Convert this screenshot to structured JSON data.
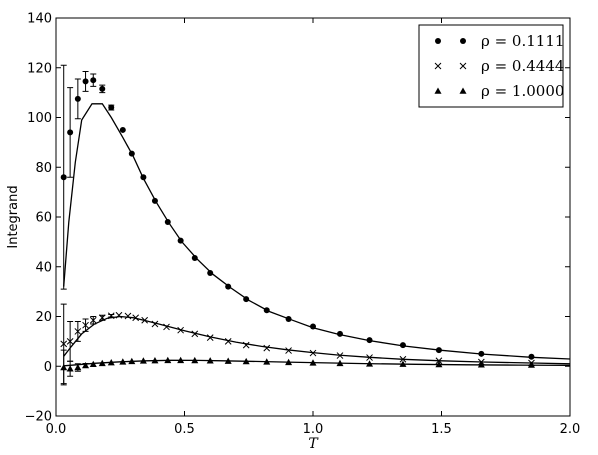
{
  "chart_data": {
    "type": "scatter",
    "xlabel": "T",
    "ylabel": "Integrand",
    "xlim": [
      0.0,
      2.0
    ],
    "ylim": [
      -20,
      140
    ],
    "xticks": [
      0.0,
      0.5,
      1.0,
      1.5,
      2.0
    ],
    "xtick_labels": [
      "0.0",
      "0.5",
      "1.0",
      "1.5",
      "2.0"
    ],
    "yticks": [
      -20,
      0,
      20,
      40,
      60,
      80,
      100,
      120,
      140
    ],
    "ytick_labels": [
      "−20",
      "0",
      "20",
      "40",
      "60",
      "80",
      "100",
      "120",
      "140"
    ],
    "legend_position": "top-right",
    "series": [
      {
        "name": "ρ = 0.1111",
        "marker": "circle",
        "points": [
          {
            "x": 0.03,
            "y": 76,
            "err": 45
          },
          {
            "x": 0.055,
            "y": 94,
            "err": 18
          },
          {
            "x": 0.085,
            "y": 107.5,
            "err": 8
          },
          {
            "x": 0.115,
            "y": 114.5,
            "err": 4
          },
          {
            "x": 0.145,
            "y": 115,
            "err": 2.5
          },
          {
            "x": 0.18,
            "y": 111.5,
            "err": 1.5
          },
          {
            "x": 0.215,
            "y": 104,
            "err": 1
          },
          {
            "x": 0.26,
            "y": 95,
            "err": 0
          },
          {
            "x": 0.295,
            "y": 85.5,
            "err": 0
          },
          {
            "x": 0.34,
            "y": 76,
            "err": 0
          },
          {
            "x": 0.385,
            "y": 66.5,
            "err": 0
          },
          {
            "x": 0.435,
            "y": 58,
            "err": 0
          },
          {
            "x": 0.485,
            "y": 50.5,
            "err": 0
          },
          {
            "x": 0.54,
            "y": 43.5,
            "err": 0
          },
          {
            "x": 0.6,
            "y": 37.5,
            "err": 0
          },
          {
            "x": 0.67,
            "y": 32,
            "err": 0
          },
          {
            "x": 0.74,
            "y": 27,
            "err": 0
          },
          {
            "x": 0.82,
            "y": 22.5,
            "err": 0
          },
          {
            "x": 0.905,
            "y": 19,
            "err": 0
          },
          {
            "x": 1.0,
            "y": 16,
            "err": 0
          },
          {
            "x": 1.105,
            "y": 13,
            "err": 0
          },
          {
            "x": 1.22,
            "y": 10.5,
            "err": 0
          },
          {
            "x": 1.35,
            "y": 8.5,
            "err": 0
          },
          {
            "x": 1.49,
            "y": 6.5,
            "err": 0
          },
          {
            "x": 1.655,
            "y": 5,
            "err": 0
          },
          {
            "x": 1.85,
            "y": 3.8,
            "err": 0
          }
        ],
        "fit_line": [
          [
            0.03,
            32
          ],
          [
            0.05,
            58
          ],
          [
            0.075,
            82
          ],
          [
            0.1,
            99
          ],
          [
            0.14,
            105.5
          ],
          [
            0.18,
            105.5
          ],
          [
            0.215,
            100
          ],
          [
            0.26,
            92
          ],
          [
            0.3,
            84.5
          ],
          [
            0.34,
            75.5
          ],
          [
            0.39,
            66
          ],
          [
            0.44,
            57.5
          ],
          [
            0.49,
            50
          ],
          [
            0.55,
            43
          ],
          [
            0.61,
            37
          ],
          [
            0.68,
            31.5
          ],
          [
            0.75,
            26.5
          ],
          [
            0.83,
            22
          ],
          [
            0.92,
            18.5
          ],
          [
            1.0,
            15.5
          ],
          [
            1.1,
            12.8
          ],
          [
            1.22,
            10.3
          ],
          [
            1.35,
            8.2
          ],
          [
            1.5,
            6.4
          ],
          [
            1.66,
            4.9
          ],
          [
            1.85,
            3.6
          ],
          [
            2.0,
            2.9
          ]
        ]
      },
      {
        "name": "ρ = 0.4444",
        "marker": "x",
        "points": [
          {
            "x": 0.03,
            "y": 9,
            "err": 16
          },
          {
            "x": 0.055,
            "y": 10,
            "err": 8
          },
          {
            "x": 0.085,
            "y": 14,
            "err": 4
          },
          {
            "x": 0.115,
            "y": 16.5,
            "err": 2.5
          },
          {
            "x": 0.145,
            "y": 18.5,
            "err": 1.5
          },
          {
            "x": 0.18,
            "y": 19.5,
            "err": 1
          },
          {
            "x": 0.215,
            "y": 20.3,
            "err": 0.5
          },
          {
            "x": 0.245,
            "y": 20.5,
            "err": 0
          },
          {
            "x": 0.28,
            "y": 20.2,
            "err": 0
          },
          {
            "x": 0.31,
            "y": 19.5,
            "err": 0
          },
          {
            "x": 0.345,
            "y": 18.5,
            "err": 0
          },
          {
            "x": 0.385,
            "y": 17,
            "err": 0
          },
          {
            "x": 0.43,
            "y": 15.8,
            "err": 0
          },
          {
            "x": 0.485,
            "y": 14.5,
            "err": 0
          },
          {
            "x": 0.54,
            "y": 13,
            "err": 0
          },
          {
            "x": 0.6,
            "y": 11.5,
            "err": 0
          },
          {
            "x": 0.67,
            "y": 10,
            "err": 0
          },
          {
            "x": 0.74,
            "y": 8.5,
            "err": 0
          },
          {
            "x": 0.82,
            "y": 7.3,
            "err": 0
          },
          {
            "x": 0.905,
            "y": 6.3,
            "err": 0
          },
          {
            "x": 1.0,
            "y": 5.3,
            "err": 0
          },
          {
            "x": 1.105,
            "y": 4.3,
            "err": 0
          },
          {
            "x": 1.22,
            "y": 3.5,
            "err": 0
          },
          {
            "x": 1.35,
            "y": 2.8,
            "err": 0
          },
          {
            "x": 1.49,
            "y": 2.2,
            "err": 0
          },
          {
            "x": 1.655,
            "y": 1.7,
            "err": 0
          },
          {
            "x": 1.85,
            "y": 1.3,
            "err": 0
          }
        ],
        "fit_line": [
          [
            0.03,
            4
          ],
          [
            0.06,
            8
          ],
          [
            0.1,
            13
          ],
          [
            0.15,
            17
          ],
          [
            0.2,
            19.3
          ],
          [
            0.25,
            20
          ],
          [
            0.3,
            19.5
          ],
          [
            0.35,
            18.3
          ],
          [
            0.4,
            17
          ],
          [
            0.45,
            15.6
          ],
          [
            0.5,
            14.3
          ],
          [
            0.6,
            11.8
          ],
          [
            0.7,
            9.7
          ],
          [
            0.8,
            8
          ],
          [
            0.9,
            6.6
          ],
          [
            1.0,
            5.5
          ],
          [
            1.1,
            4.5
          ],
          [
            1.22,
            3.6
          ],
          [
            1.35,
            2.8
          ],
          [
            1.5,
            2.2
          ],
          [
            1.66,
            1.7
          ],
          [
            1.85,
            1.3
          ],
          [
            2.0,
            1.0
          ]
        ]
      },
      {
        "name": "ρ = 1.0000",
        "marker": "triangle",
        "points": [
          {
            "x": 0.03,
            "y": -0.5,
            "err": 7
          },
          {
            "x": 0.055,
            "y": -1,
            "err": 3
          },
          {
            "x": 0.085,
            "y": -0.5,
            "err": 1.5
          },
          {
            "x": 0.115,
            "y": 0.3,
            "err": 0.8
          },
          {
            "x": 0.145,
            "y": 0.8,
            "err": 0
          },
          {
            "x": 0.18,
            "y": 1.2,
            "err": 0
          },
          {
            "x": 0.215,
            "y": 1.5,
            "err": 0
          },
          {
            "x": 0.26,
            "y": 1.8,
            "err": 0
          },
          {
            "x": 0.295,
            "y": 2.0,
            "err": 0
          },
          {
            "x": 0.34,
            "y": 2.2,
            "err": 0
          },
          {
            "x": 0.385,
            "y": 2.3,
            "err": 0
          },
          {
            "x": 0.435,
            "y": 2.4,
            "err": 0
          },
          {
            "x": 0.485,
            "y": 2.4,
            "err": 0
          },
          {
            "x": 0.54,
            "y": 2.35,
            "err": 0
          },
          {
            "x": 0.6,
            "y": 2.25,
            "err": 0
          },
          {
            "x": 0.67,
            "y": 2.1,
            "err": 0
          },
          {
            "x": 0.74,
            "y": 1.95,
            "err": 0
          },
          {
            "x": 0.82,
            "y": 1.8,
            "err": 0
          },
          {
            "x": 0.905,
            "y": 1.6,
            "err": 0
          },
          {
            "x": 1.0,
            "y": 1.4,
            "err": 0
          },
          {
            "x": 1.105,
            "y": 1.2,
            "err": 0
          },
          {
            "x": 1.22,
            "y": 1.0,
            "err": 0
          },
          {
            "x": 1.35,
            "y": 0.85,
            "err": 0
          },
          {
            "x": 1.49,
            "y": 0.7,
            "err": 0
          },
          {
            "x": 1.655,
            "y": 0.6,
            "err": 0
          },
          {
            "x": 1.85,
            "y": 0.5,
            "err": 0
          }
        ],
        "fit_line": [
          [
            0.03,
            0.2
          ],
          [
            0.08,
            0.6
          ],
          [
            0.15,
            1.2
          ],
          [
            0.25,
            1.8
          ],
          [
            0.35,
            2.2
          ],
          [
            0.45,
            2.4
          ],
          [
            0.55,
            2.35
          ],
          [
            0.65,
            2.2
          ],
          [
            0.75,
            2.0
          ],
          [
            0.9,
            1.65
          ],
          [
            1.0,
            1.45
          ],
          [
            1.2,
            1.05
          ],
          [
            1.4,
            0.8
          ],
          [
            1.6,
            0.6
          ],
          [
            1.8,
            0.45
          ],
          [
            2.0,
            0.35
          ]
        ]
      }
    ]
  }
}
